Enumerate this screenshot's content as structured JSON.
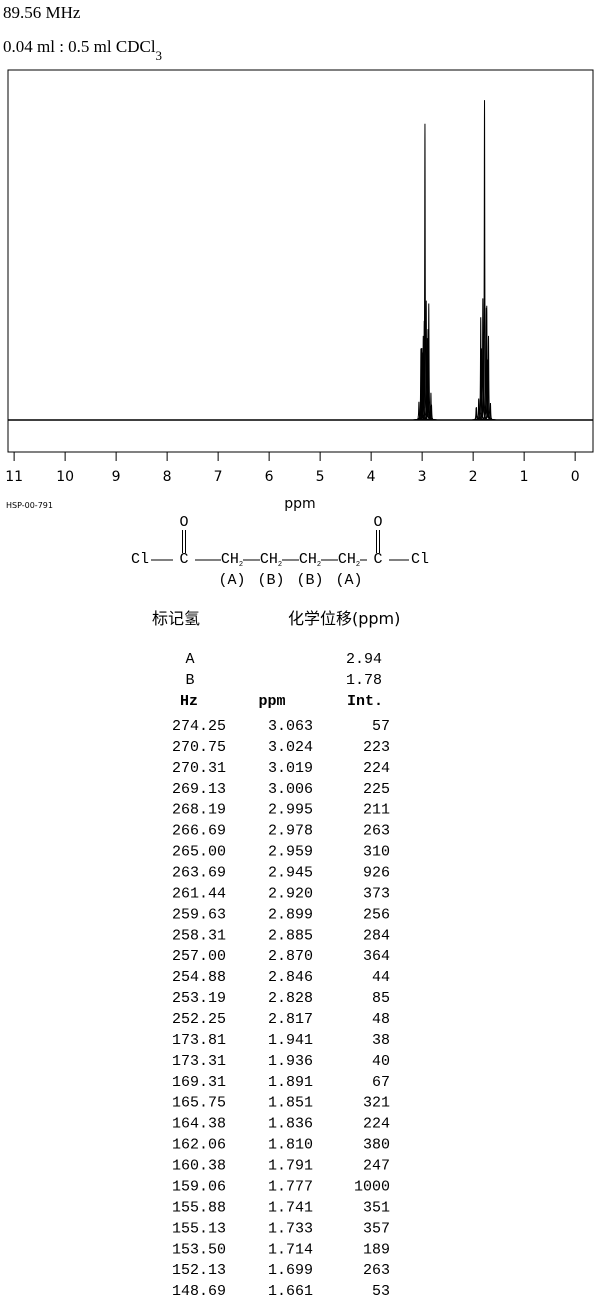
{
  "header": {
    "frequency": "89.56 MHz",
    "sample": "0.04 ml : 0.5 ml CDCl",
    "sample_sub": "3"
  },
  "chart_data": {
    "type": "spectrum",
    "xlabel": "ppm",
    "code": "HSP-00-791",
    "xlim": [
      11.12,
      -0.35
    ],
    "xticks": [
      11,
      10,
      9,
      8,
      7,
      6,
      5,
      4,
      3,
      2,
      1,
      0
    ],
    "ylim": [
      -100,
      1094
    ],
    "color": "#000000",
    "hz": [
      274.25,
      270.75,
      270.31,
      269.13,
      268.19,
      266.69,
      265.0,
      263.69,
      261.44,
      259.63,
      258.31,
      257.0,
      254.88,
      253.19,
      252.25,
      173.81,
      173.31,
      169.31,
      165.75,
      164.38,
      162.06,
      160.38,
      159.06,
      155.88,
      155.13,
      153.5,
      152.13,
      148.69
    ],
    "hz_labels": [
      "274.25",
      "270.75",
      "270.31",
      "269.13",
      "268.19",
      "266.69",
      "265.00",
      "263.69",
      "261.44",
      "259.63",
      "258.31",
      "257.00",
      "254.88",
      "253.19",
      "252.25",
      "173.81",
      "173.31",
      "169.31",
      "165.75",
      "164.38",
      "162.06",
      "160.38",
      "159.06",
      "155.88",
      "155.13",
      "153.50",
      "152.13",
      "148.69"
    ],
    "x": [
      3.063,
      3.024,
      3.019,
      3.006,
      2.995,
      2.978,
      2.959,
      2.945,
      2.92,
      2.899,
      2.885,
      2.87,
      2.846,
      2.828,
      2.817,
      1.941,
      1.936,
      1.891,
      1.851,
      1.836,
      1.81,
      1.791,
      1.777,
      1.741,
      1.733,
      1.714,
      1.699,
      1.661
    ],
    "x_labels": [
      "3.063",
      "3.024",
      "3.019",
      "3.006",
      "2.995",
      "2.978",
      "2.959",
      "2.945",
      "2.920",
      "2.899",
      "2.885",
      "2.870",
      "2.846",
      "2.828",
      "2.817",
      "1.941",
      "1.936",
      "1.891",
      "1.851",
      "1.836",
      "1.810",
      "1.791",
      "1.777",
      "1.741",
      "1.733",
      "1.714",
      "1.699",
      "1.661"
    ],
    "values": [
      57,
      223,
      224,
      225,
      211,
      263,
      310,
      926,
      373,
      256,
      284,
      364,
      44,
      85,
      48,
      38,
      40,
      67,
      321,
      224,
      380,
      247,
      1000,
      351,
      357,
      189,
      263,
      53
    ],
    "columns": [
      "Hz",
      "ppm",
      "Int."
    ]
  },
  "structure": {
    "atoms": [
      {
        "text": "Cl"
      },
      {
        "text": "C"
      },
      {
        "text": "CH",
        "sub": "2"
      },
      {
        "text": "CH",
        "sub": "2"
      },
      {
        "text": "CH",
        "sub": "2"
      },
      {
        "text": "CH",
        "sub": "2"
      },
      {
        "text": "C"
      },
      {
        "text": "Cl"
      }
    ],
    "oxygens": [
      "O",
      "O"
    ],
    "labels": [
      "(A)",
      "(B)",
      "(B)",
      "(A)"
    ]
  },
  "assignment": {
    "headers": [
      "标记氢",
      "化学位移(ppm)"
    ],
    "rows": [
      [
        "A",
        2.94
      ],
      [
        "B",
        1.78
      ]
    ]
  }
}
